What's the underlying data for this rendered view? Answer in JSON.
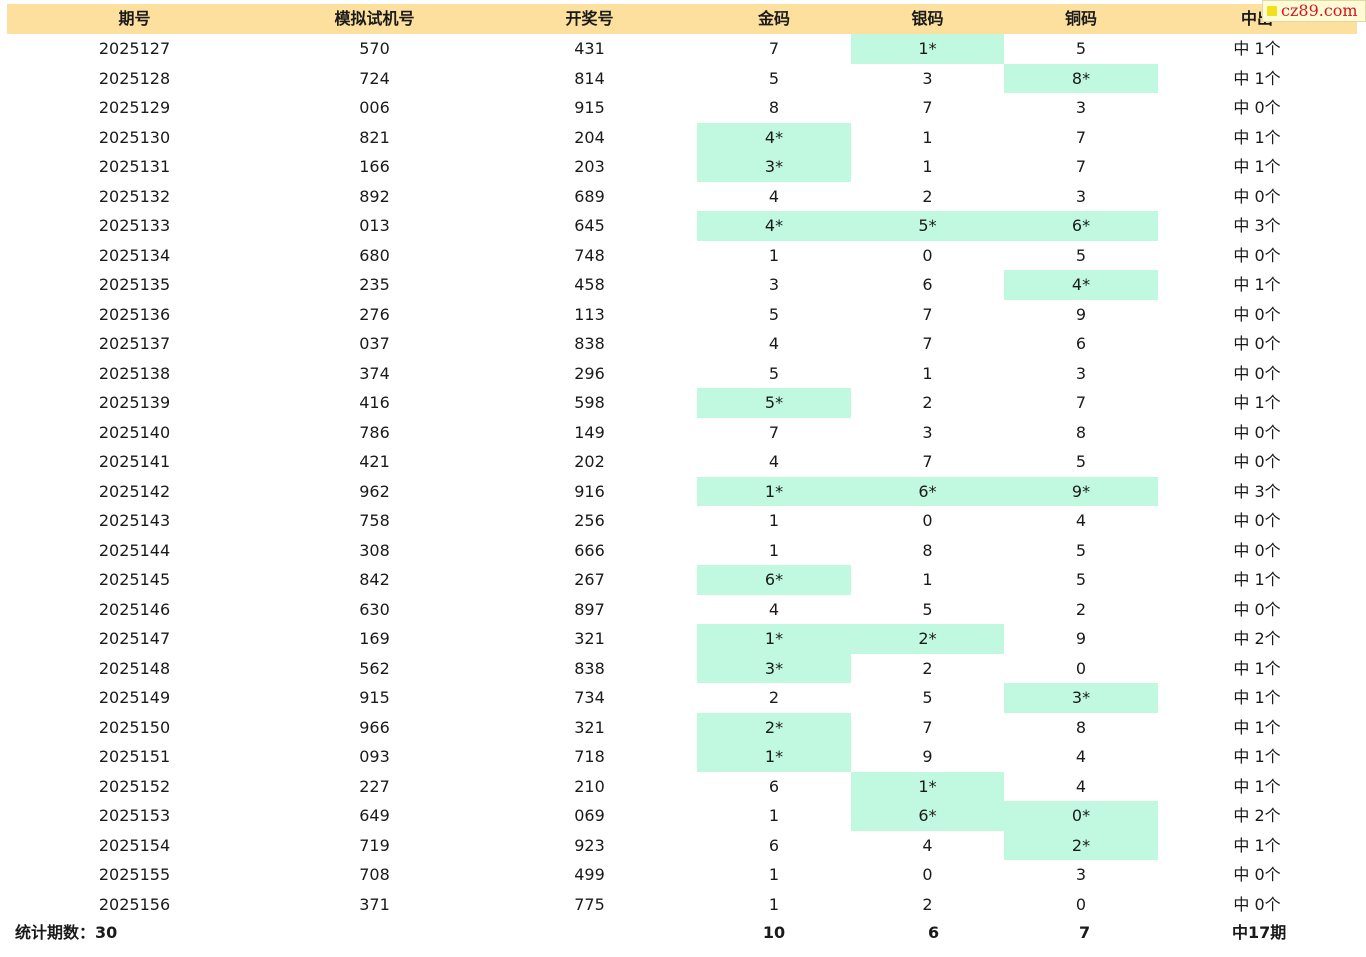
{
  "headers": [
    "期号",
    "模拟试机号",
    "开奖号",
    "金码",
    "银码",
    "铜码",
    "中出"
  ],
  "rows": [
    {
      "issue": "2025127",
      "sim": "570",
      "draw": "431",
      "gold": "7",
      "silver": "1*",
      "bronze": "5",
      "result": "中 1个"
    },
    {
      "issue": "2025128",
      "sim": "724",
      "draw": "814",
      "gold": "5",
      "silver": "3",
      "bronze": "8*",
      "result": "中 1个"
    },
    {
      "issue": "2025129",
      "sim": "006",
      "draw": "915",
      "gold": "8",
      "silver": "7",
      "bronze": "3",
      "result": "中 0个"
    },
    {
      "issue": "2025130",
      "sim": "821",
      "draw": "204",
      "gold": "4*",
      "silver": "1",
      "bronze": "7",
      "result": "中 1个"
    },
    {
      "issue": "2025131",
      "sim": "166",
      "draw": "203",
      "gold": "3*",
      "silver": "1",
      "bronze": "7",
      "result": "中 1个"
    },
    {
      "issue": "2025132",
      "sim": "892",
      "draw": "689",
      "gold": "4",
      "silver": "2",
      "bronze": "3",
      "result": "中 0个"
    },
    {
      "issue": "2025133",
      "sim": "013",
      "draw": "645",
      "gold": "4*",
      "silver": "5*",
      "bronze": "6*",
      "result": "中 3个"
    },
    {
      "issue": "2025134",
      "sim": "680",
      "draw": "748",
      "gold": "1",
      "silver": "0",
      "bronze": "5",
      "result": "中 0个"
    },
    {
      "issue": "2025135",
      "sim": "235",
      "draw": "458",
      "gold": "3",
      "silver": "6",
      "bronze": "4*",
      "result": "中 1个"
    },
    {
      "issue": "2025136",
      "sim": "276",
      "draw": "113",
      "gold": "5",
      "silver": "7",
      "bronze": "9",
      "result": "中 0个"
    },
    {
      "issue": "2025137",
      "sim": "037",
      "draw": "838",
      "gold": "4",
      "silver": "7",
      "bronze": "6",
      "result": "中 0个"
    },
    {
      "issue": "2025138",
      "sim": "374",
      "draw": "296",
      "gold": "5",
      "silver": "1",
      "bronze": "3",
      "result": "中 0个"
    },
    {
      "issue": "2025139",
      "sim": "416",
      "draw": "598",
      "gold": "5*",
      "silver": "2",
      "bronze": "7",
      "result": "中 1个"
    },
    {
      "issue": "2025140",
      "sim": "786",
      "draw": "149",
      "gold": "7",
      "silver": "3",
      "bronze": "8",
      "result": "中 0个"
    },
    {
      "issue": "2025141",
      "sim": "421",
      "draw": "202",
      "gold": "4",
      "silver": "7",
      "bronze": "5",
      "result": "中 0个"
    },
    {
      "issue": "2025142",
      "sim": "962",
      "draw": "916",
      "gold": "1*",
      "silver": "6*",
      "bronze": "9*",
      "result": "中 3个"
    },
    {
      "issue": "2025143",
      "sim": "758",
      "draw": "256",
      "gold": "1",
      "silver": "0",
      "bronze": "4",
      "result": "中 0个"
    },
    {
      "issue": "2025144",
      "sim": "308",
      "draw": "666",
      "gold": "1",
      "silver": "8",
      "bronze": "5",
      "result": "中 0个"
    },
    {
      "issue": "2025145",
      "sim": "842",
      "draw": "267",
      "gold": "6*",
      "silver": "1",
      "bronze": "5",
      "result": "中 1个"
    },
    {
      "issue": "2025146",
      "sim": "630",
      "draw": "897",
      "gold": "4",
      "silver": "5",
      "bronze": "2",
      "result": "中 0个"
    },
    {
      "issue": "2025147",
      "sim": "169",
      "draw": "321",
      "gold": "1*",
      "silver": "2*",
      "bronze": "9",
      "result": "中 2个"
    },
    {
      "issue": "2025148",
      "sim": "562",
      "draw": "838",
      "gold": "3*",
      "silver": "2",
      "bronze": "0",
      "result": "中 1个"
    },
    {
      "issue": "2025149",
      "sim": "915",
      "draw": "734",
      "gold": "2",
      "silver": "5",
      "bronze": "3*",
      "result": "中 1个"
    },
    {
      "issue": "2025150",
      "sim": "966",
      "draw": "321",
      "gold": "2*",
      "silver": "7",
      "bronze": "8",
      "result": "中 1个"
    },
    {
      "issue": "2025151",
      "sim": "093",
      "draw": "718",
      "gold": "1*",
      "silver": "9",
      "bronze": "4",
      "result": "中 1个"
    },
    {
      "issue": "2025152",
      "sim": "227",
      "draw": "210",
      "gold": "6",
      "silver": "1*",
      "bronze": "4",
      "result": "中 1个"
    },
    {
      "issue": "2025153",
      "sim": "649",
      "draw": "069",
      "gold": "1",
      "silver": "6*",
      "bronze": "0*",
      "result": "中 2个"
    },
    {
      "issue": "2025154",
      "sim": "719",
      "draw": "923",
      "gold": "6",
      "silver": "4",
      "bronze": "2*",
      "result": "中 1个"
    },
    {
      "issue": "2025155",
      "sim": "708",
      "draw": "499",
      "gold": "1",
      "silver": "0",
      "bronze": "3",
      "result": "中 0个"
    },
    {
      "issue": "2025156",
      "sim": "371",
      "draw": "775",
      "gold": "1",
      "silver": "2",
      "bronze": "0",
      "result": "中 0个"
    }
  ],
  "footer": {
    "label": "统计期数：30",
    "gold_total": "10",
    "silver_total": "6",
    "bronze_total": "7",
    "result_total": "中17期"
  },
  "watermark": "cz89.com",
  "colors": {
    "header_bg": "#fde09d",
    "hit_bg": "#c1f8e0",
    "watermark_text": "#d9131f"
  }
}
